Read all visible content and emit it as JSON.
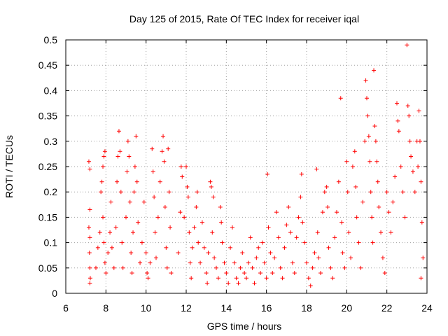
{
  "chart_data": {
    "type": "scatter",
    "title": "Day 125 of 2015, Rate Of TEC Index for receiver iqal",
    "xlabel": "GPS time / hours",
    "ylabel": "ROTI / TECUs",
    "xlim": [
      6,
      24
    ],
    "ylim": [
      0,
      0.5
    ],
    "xticks": [
      "6",
      "8",
      "10",
      "12",
      "14",
      "16",
      "18",
      "20",
      "22",
      "24"
    ],
    "yticks": [
      "0",
      "0.05",
      "0.1",
      "0.15",
      "0.2",
      "0.25",
      "0.3",
      "0.35",
      "0.4",
      "0.45",
      "0.5"
    ],
    "grid": true,
    "marker": "+",
    "marker_color": "#ff0000",
    "series": [
      {
        "name": "ROTI",
        "points": [
          [
            7.15,
            0.26
          ],
          [
            7.2,
            0.245
          ],
          [
            7.2,
            0.165
          ],
          [
            7.15,
            0.13
          ],
          [
            7.2,
            0.11
          ],
          [
            7.18,
            0.08
          ],
          [
            7.2,
            0.05
          ],
          [
            7.22,
            0.03
          ],
          [
            7.2,
            0.02
          ],
          [
            7.5,
            0.05
          ],
          [
            7.6,
            0.09
          ],
          [
            7.7,
            0.12
          ],
          [
            7.75,
            0.2
          ],
          [
            7.8,
            0.22
          ],
          [
            7.85,
            0.25
          ],
          [
            7.9,
            0.27
          ],
          [
            7.95,
            0.28
          ],
          [
            7.85,
            0.15
          ],
          [
            7.9,
            0.1
          ],
          [
            7.95,
            0.06
          ],
          [
            8.0,
            0.04
          ],
          [
            8.1,
            0.08
          ],
          [
            8.2,
            0.12
          ],
          [
            8.25,
            0.18
          ],
          [
            8.3,
            0.09
          ],
          [
            8.4,
            0.05
          ],
          [
            8.5,
            0.13
          ],
          [
            8.55,
            0.22
          ],
          [
            8.6,
            0.27
          ],
          [
            8.65,
            0.32
          ],
          [
            8.7,
            0.28
          ],
          [
            8.75,
            0.2
          ],
          [
            8.8,
            0.1
          ],
          [
            8.85,
            0.05
          ],
          [
            9.0,
            0.15
          ],
          [
            9.05,
            0.24
          ],
          [
            9.1,
            0.3
          ],
          [
            9.15,
            0.27
          ],
          [
            9.2,
            0.18
          ],
          [
            9.25,
            0.08
          ],
          [
            9.3,
            0.04
          ],
          [
            9.35,
            0.12
          ],
          [
            9.4,
            0.2
          ],
          [
            9.45,
            0.25
          ],
          [
            9.5,
            0.31
          ],
          [
            9.55,
            0.22
          ],
          [
            9.6,
            0.14
          ],
          [
            9.7,
            0.06
          ],
          [
            9.8,
            0.1
          ],
          [
            9.9,
            0.18
          ],
          [
            10.0,
            0.08
          ],
          [
            10.05,
            0.04
          ],
          [
            10.1,
            0.03
          ],
          [
            10.2,
            0.06
          ],
          [
            10.3,
            0.285
          ],
          [
            10.35,
            0.24
          ],
          [
            10.4,
            0.19
          ],
          [
            10.45,
            0.12
          ],
          [
            10.5,
            0.07
          ],
          [
            10.6,
            0.15
          ],
          [
            10.7,
            0.22
          ],
          [
            10.8,
            0.28
          ],
          [
            10.85,
            0.31
          ],
          [
            10.9,
            0.26
          ],
          [
            10.95,
            0.17
          ],
          [
            11.0,
            0.09
          ],
          [
            11.05,
            0.05
          ],
          [
            11.1,
            0.285
          ],
          [
            11.15,
            0.2
          ],
          [
            11.2,
            0.13
          ],
          [
            11.25,
            0.04
          ],
          [
            11.6,
            0.08
          ],
          [
            11.7,
            0.16
          ],
          [
            11.75,
            0.25
          ],
          [
            11.8,
            0.23
          ],
          [
            11.9,
            0.15
          ],
          [
            12.0,
            0.25
          ],
          [
            12.05,
            0.21
          ],
          [
            12.1,
            0.19
          ],
          [
            12.15,
            0.12
          ],
          [
            12.2,
            0.06
          ],
          [
            12.25,
            0.03
          ],
          [
            12.3,
            0.09
          ],
          [
            12.4,
            0.13
          ],
          [
            12.5,
            0.17
          ],
          [
            12.55,
            0.2
          ],
          [
            12.6,
            0.1
          ],
          [
            12.7,
            0.06
          ],
          [
            12.8,
            0.14
          ],
          [
            12.9,
            0.09
          ],
          [
            13.0,
            0.04
          ],
          [
            13.05,
            0.02
          ],
          [
            13.1,
            0.08
          ],
          [
            13.2,
            0.22
          ],
          [
            13.25,
            0.21
          ],
          [
            13.3,
            0.12
          ],
          [
            13.35,
            0.19
          ],
          [
            13.4,
            0.07
          ],
          [
            13.5,
            0.05
          ],
          [
            13.6,
            0.03
          ],
          [
            13.7,
            0.17
          ],
          [
            13.75,
            0.14
          ],
          [
            13.8,
            0.1
          ],
          [
            13.9,
            0.06
          ],
          [
            14.0,
            0.04
          ],
          [
            14.1,
            0.02
          ],
          [
            14.2,
            0.09
          ],
          [
            14.3,
            0.13
          ],
          [
            14.4,
            0.06
          ],
          [
            14.5,
            0.03
          ],
          [
            14.6,
            0.02
          ],
          [
            14.7,
            0.05
          ],
          [
            14.8,
            0.08
          ],
          [
            14.9,
            0.04
          ],
          [
            15.0,
            0.03
          ],
          [
            15.1,
            0.06
          ],
          [
            15.2,
            0.11
          ],
          [
            15.3,
            0.05
          ],
          [
            15.4,
            0.02
          ],
          [
            15.5,
            0.07
          ],
          [
            15.6,
            0.09
          ],
          [
            15.7,
            0.04
          ],
          [
            15.8,
            0.1
          ],
          [
            15.9,
            0.06
          ],
          [
            16.0,
            0.03
          ],
          [
            16.05,
            0.235
          ],
          [
            16.1,
            0.13
          ],
          [
            16.2,
            0.08
          ],
          [
            16.3,
            0.04
          ],
          [
            16.4,
            0.07
          ],
          [
            16.5,
            0.16
          ],
          [
            16.6,
            0.11
          ],
          [
            16.7,
            0.05
          ],
          [
            16.8,
            0.03
          ],
          [
            16.9,
            0.09
          ],
          [
            17.0,
            0.135
          ],
          [
            17.1,
            0.17
          ],
          [
            17.2,
            0.12
          ],
          [
            17.3,
            0.06
          ],
          [
            17.4,
            0.04
          ],
          [
            17.5,
            0.11
          ],
          [
            17.6,
            0.15
          ],
          [
            17.7,
            0.19
          ],
          [
            17.75,
            0.235
          ],
          [
            17.8,
            0.14
          ],
          [
            17.9,
            0.1
          ],
          [
            18.0,
            0.06
          ],
          [
            18.1,
            0.03
          ],
          [
            18.2,
            0.015
          ],
          [
            18.3,
            0.05
          ],
          [
            18.4,
            0.08
          ],
          [
            18.5,
            0.245
          ],
          [
            18.55,
            0.12
          ],
          [
            18.6,
            0.07
          ],
          [
            18.7,
            0.04
          ],
          [
            18.8,
            0.16
          ],
          [
            18.9,
            0.2
          ],
          [
            19.0,
            0.21
          ],
          [
            19.05,
            0.17
          ],
          [
            19.1,
            0.09
          ],
          [
            19.2,
            0.05
          ],
          [
            19.3,
            0.03
          ],
          [
            19.4,
            0.11
          ],
          [
            19.5,
            0.16
          ],
          [
            19.6,
            0.22
          ],
          [
            19.7,
            0.385
          ],
          [
            19.75,
            0.14
          ],
          [
            19.8,
            0.08
          ],
          [
            19.9,
            0.05
          ],
          [
            20.0,
            0.26
          ],
          [
            20.05,
            0.2
          ],
          [
            20.1,
            0.12
          ],
          [
            20.2,
            0.07
          ],
          [
            20.3,
            0.25
          ],
          [
            20.4,
            0.28
          ],
          [
            20.45,
            0.21
          ],
          [
            20.5,
            0.15
          ],
          [
            20.6,
            0.1
          ],
          [
            20.7,
            0.05
          ],
          [
            20.8,
            0.18
          ],
          [
            20.9,
            0.3
          ],
          [
            20.95,
            0.42
          ],
          [
            21.0,
            0.385
          ],
          [
            21.05,
            0.35
          ],
          [
            21.1,
            0.31
          ],
          [
            21.15,
            0.26
          ],
          [
            21.2,
            0.2
          ],
          [
            21.25,
            0.15
          ],
          [
            21.3,
            0.1
          ],
          [
            21.35,
            0.44
          ],
          [
            21.4,
            0.33
          ],
          [
            21.45,
            0.3
          ],
          [
            21.5,
            0.26
          ],
          [
            21.55,
            0.22
          ],
          [
            21.6,
            0.17
          ],
          [
            21.7,
            0.12
          ],
          [
            21.8,
            0.07
          ],
          [
            21.9,
            0.04
          ],
          [
            22.0,
            0.2
          ],
          [
            22.1,
            0.16
          ],
          [
            22.2,
            0.12
          ],
          [
            22.3,
            0.18
          ],
          [
            22.4,
            0.23
          ],
          [
            22.5,
            0.375
          ],
          [
            22.55,
            0.34
          ],
          [
            22.6,
            0.32
          ],
          [
            22.7,
            0.25
          ],
          [
            22.8,
            0.2
          ],
          [
            22.9,
            0.15
          ],
          [
            23.0,
            0.49
          ],
          [
            23.05,
            0.37
          ],
          [
            23.1,
            0.35
          ],
          [
            23.15,
            0.3
          ],
          [
            23.2,
            0.27
          ],
          [
            23.3,
            0.24
          ],
          [
            23.4,
            0.2
          ],
          [
            23.5,
            0.3
          ],
          [
            23.55,
            0.25
          ],
          [
            23.6,
            0.36
          ],
          [
            23.65,
            0.3
          ],
          [
            23.7,
            0.22
          ],
          [
            23.75,
            0.14
          ],
          [
            23.8,
            0.07
          ],
          [
            23.7,
            0.03
          ]
        ]
      }
    ]
  }
}
